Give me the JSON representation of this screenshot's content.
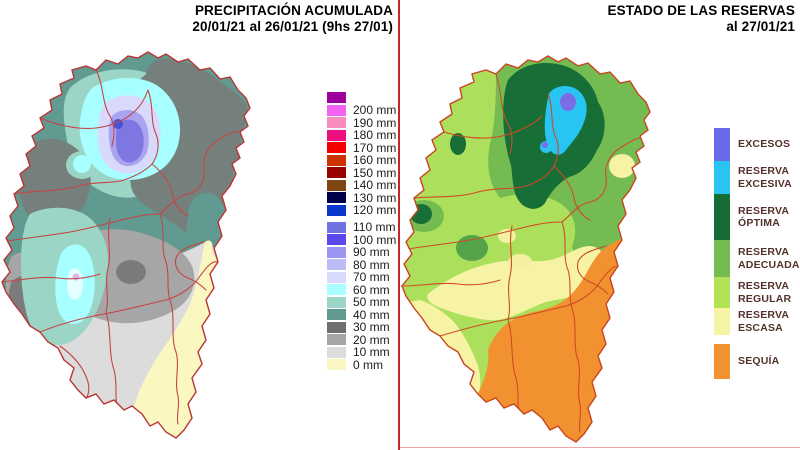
{
  "panels": {
    "precipitation": {
      "title_line1": "PRECIPITACIÓN ACUMULADA",
      "title_line2": "20/01/21 al 26/01/21 (9hs 27/01)",
      "legend": {
        "unit": "mm",
        "items": [
          {
            "label": "",
            "color": "#9c009c"
          },
          {
            "label": "200 mm",
            "color": "#f263f2"
          },
          {
            "label": "190 mm",
            "color": "#f78cbc"
          },
          {
            "label": "180 mm",
            "color": "#ef0e7e"
          },
          {
            "label": "170 mm",
            "color": "#f40000"
          },
          {
            "label": "160 mm",
            "color": "#cc3300"
          },
          {
            "label": "150 mm",
            "color": "#990000"
          },
          {
            "label": "140 mm",
            "color": "#7f4613"
          },
          {
            "label": "130 mm",
            "color": "#00004d"
          },
          {
            "label": "120 mm",
            "color": "#0a38cc"
          },
          {
            "label": "110 mm",
            "color": "#7173e0"
          },
          {
            "label": "100 mm",
            "color": "#5a49ee"
          },
          {
            "label": "90 mm",
            "color": "#9b96f2"
          },
          {
            "label": "80 mm",
            "color": "#bcbcf6"
          },
          {
            "label": "70 mm",
            "color": "#d9d9fb"
          },
          {
            "label": "60 mm",
            "color": "#a8ffff"
          },
          {
            "label": "50 mm",
            "color": "#9bd5c6"
          },
          {
            "label": "40 mm",
            "color": "#609a90"
          },
          {
            "label": "30 mm",
            "color": "#6f6f6f"
          },
          {
            "label": "20 mm",
            "color": "#a6a6a6"
          },
          {
            "label": "10 mm",
            "color": "#dcdcdc"
          },
          {
            "label": "0 mm",
            "color": "#faf8c0"
          }
        ]
      }
    },
    "reserves": {
      "title_line1": "ESTADO DE LAS RESERVAS",
      "title_line2": "al 27/01/21",
      "legend": {
        "items": [
          {
            "label": "EXCESOS",
            "color": "#6a6ae8"
          },
          {
            "label": "RESERVA\nEXCESIVA",
            "color": "#29c5f2"
          },
          {
            "label": "RESERVA\nÓPTIMA",
            "color": "#156d35"
          },
          {
            "label": "RESERVA\nADECUADA",
            "color": "#74bc52"
          },
          {
            "label": "RESERVA\nREGULAR",
            "color": "#b2e356"
          },
          {
            "label": "RESERVA\nESCASA",
            "color": "#f7f3a4"
          },
          {
            "label": "SEQUÍA",
            "color": "#f29130"
          }
        ]
      }
    }
  },
  "colors": {
    "divider": "#c42727",
    "left_boundaries": "#c44545",
    "right_boundaries": "#cf4a26"
  }
}
